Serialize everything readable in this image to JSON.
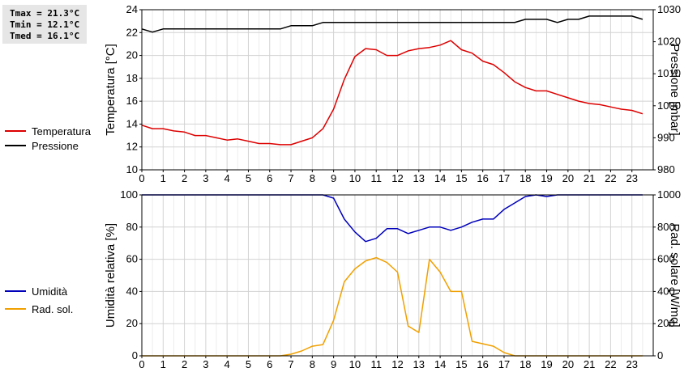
{
  "stats": {
    "tmax": "Tmax = 21.3°C",
    "tmin": "Tmin = 12.1°C",
    "tmed": "Tmed = 16.1°C"
  },
  "chart_data": [
    {
      "type": "line",
      "x_ticks": [
        "0",
        "1",
        "2",
        "3",
        "4",
        "5",
        "6",
        "7",
        "8",
        "9",
        "10",
        "11",
        "12",
        "13",
        "14",
        "15",
        "16",
        "17",
        "18",
        "19",
        "20",
        "21",
        "22",
        "23"
      ],
      "xlim": [
        0,
        24
      ],
      "ylabel": "Temperatura [°C]",
      "ylim": [
        10,
        24
      ],
      "yticks": [
        "10",
        "12",
        "14",
        "16",
        "18",
        "20",
        "22",
        "24"
      ],
      "y2label": "Pressione [mbar]",
      "y2lim": [
        980,
        1030
      ],
      "y2ticks": [
        "980",
        "990",
        "1000",
        "1010",
        "1020",
        "1030"
      ],
      "grid": true,
      "legend_position": "left",
      "series": [
        {
          "name": "Temperatura",
          "axis": "left",
          "color": "#dd0000",
          "x": [
            0,
            0.5,
            1,
            1.5,
            2,
            2.5,
            3,
            3.5,
            4,
            4.5,
            5,
            5.5,
            6,
            6.5,
            7,
            7.5,
            8,
            8.5,
            9,
            9.5,
            10,
            10.5,
            11,
            11.5,
            12,
            12.5,
            13,
            13.5,
            14,
            14.5,
            15,
            15.5,
            16,
            16.5,
            17,
            17.5,
            18,
            18.5,
            19,
            19.5,
            20,
            20.5,
            21,
            21.5,
            22,
            22.5,
            23,
            23.5
          ],
          "y": [
            13.9,
            13.6,
            13.6,
            13.4,
            13.3,
            13.0,
            13.0,
            12.8,
            12.6,
            12.7,
            12.5,
            12.3,
            12.3,
            12.2,
            12.2,
            12.5,
            12.8,
            13.6,
            15.3,
            17.9,
            19.9,
            20.6,
            20.5,
            20.0,
            20.0,
            20.4,
            20.6,
            20.7,
            20.9,
            21.3,
            20.5,
            20.2,
            19.5,
            19.2,
            18.5,
            17.7,
            17.2,
            16.9,
            16.9,
            16.6,
            16.3,
            16.0,
            15.8,
            15.7,
            15.5,
            15.3,
            15.2,
            14.9
          ]
        },
        {
          "name": "Pressione",
          "axis": "right",
          "color": "#000000",
          "x": [
            0,
            0.5,
            1,
            1.5,
            2,
            2.5,
            3,
            3.5,
            4,
            4.5,
            5,
            5.5,
            6,
            6.5,
            7,
            7.5,
            8,
            8.5,
            9,
            9.5,
            10,
            10.5,
            11,
            11.5,
            12,
            12.5,
            13,
            13.5,
            14,
            14.5,
            15,
            15.5,
            16,
            16.5,
            17,
            17.5,
            18,
            18.5,
            19,
            19.5,
            20,
            20.5,
            21,
            21.5,
            22,
            22.5,
            23,
            23.5
          ],
          "y": [
            1024,
            1023,
            1024,
            1024,
            1024,
            1024,
            1024,
            1024,
            1024,
            1024,
            1024,
            1024,
            1024,
            1024,
            1025,
            1025,
            1025,
            1026,
            1026,
            1026,
            1026,
            1026,
            1026,
            1026,
            1026,
            1026,
            1026,
            1026,
            1026,
            1026,
            1026,
            1026,
            1026,
            1026,
            1026,
            1026,
            1027,
            1027,
            1027,
            1026,
            1027,
            1027,
            1028,
            1028,
            1028,
            1028,
            1028,
            1027
          ]
        }
      ]
    },
    {
      "type": "line",
      "x_ticks": [
        "0",
        "1",
        "2",
        "3",
        "4",
        "5",
        "6",
        "7",
        "8",
        "9",
        "10",
        "11",
        "12",
        "13",
        "14",
        "15",
        "16",
        "17",
        "18",
        "19",
        "20",
        "21",
        "22",
        "23"
      ],
      "xlim": [
        0,
        24
      ],
      "ylabel": "Umidità relativa [%]",
      "ylim": [
        0,
        100
      ],
      "yticks": [
        "0",
        "20",
        "40",
        "60",
        "80",
        "100"
      ],
      "y2label": "Rad. solare [W/mq]",
      "y2lim": [
        0,
        1000
      ],
      "y2ticks": [
        "0",
        "200",
        "400",
        "600",
        "800",
        "1000"
      ],
      "grid": true,
      "legend_position": "left",
      "series": [
        {
          "name": "Umidità",
          "axis": "left",
          "color": "#0000bb",
          "x": [
            0,
            0.5,
            1,
            1.5,
            2,
            2.5,
            3,
            3.5,
            4,
            4.5,
            5,
            5.5,
            6,
            6.5,
            7,
            7.5,
            8,
            8.5,
            9,
            9.5,
            10,
            10.5,
            11,
            11.5,
            12,
            12.5,
            13,
            13.5,
            14,
            14.5,
            15,
            15.5,
            16,
            16.5,
            17,
            17.5,
            18,
            18.5,
            19,
            19.5,
            20,
            20.5,
            21,
            21.5,
            22,
            22.5,
            23,
            23.5
          ],
          "y": [
            100,
            100,
            100,
            100,
            100,
            100,
            100,
            100,
            100,
            100,
            100,
            100,
            100,
            100,
            100,
            100,
            100,
            100,
            98,
            85,
            77,
            71,
            73,
            79,
            79,
            76,
            78,
            80,
            80,
            78,
            80,
            83,
            85,
            85,
            91,
            95,
            99,
            100,
            99,
            100,
            100,
            100,
            100,
            100,
            100,
            100,
            100,
            100
          ]
        },
        {
          "name": "Rad. sol.",
          "axis": "right",
          "color": "#f0a000",
          "x": [
            0,
            0.5,
            1,
            1.5,
            2,
            2.5,
            3,
            3.5,
            4,
            4.5,
            5,
            5.5,
            6,
            6.5,
            7,
            7.5,
            8,
            8.5,
            9,
            9.5,
            10,
            10.5,
            11,
            11.5,
            12,
            12.5,
            13,
            13.5,
            14,
            14.5,
            15,
            15.5,
            16,
            16.5,
            17,
            17.5,
            18,
            18.5,
            19,
            19.5,
            20,
            20.5,
            21,
            21.5,
            22,
            22.5,
            23,
            23.5
          ],
          "y": [
            0,
            0,
            0,
            0,
            0,
            0,
            0,
            0,
            0,
            0,
            0,
            0,
            0,
            0,
            10,
            30,
            60,
            70,
            220,
            460,
            540,
            590,
            610,
            580,
            520,
            185,
            145,
            600,
            520,
            400,
            400,
            90,
            75,
            60,
            20,
            0,
            0,
            0,
            0,
            0,
            0,
            0,
            0,
            0,
            0,
            0,
            0,
            0
          ]
        }
      ]
    }
  ]
}
